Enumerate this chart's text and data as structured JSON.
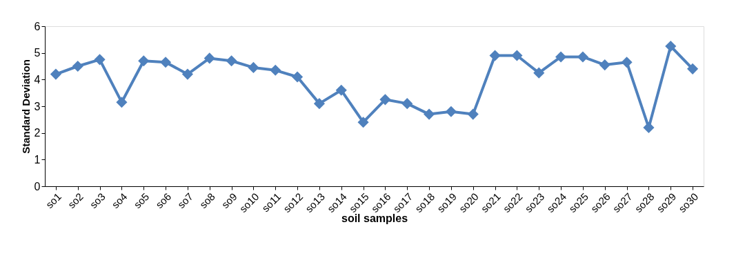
{
  "chart_data": {
    "type": "line",
    "xlabel": "soil samples",
    "ylabel": "Standard Deviation",
    "categories": [
      "so1",
      "so2",
      "so3",
      "so4",
      "so5",
      "so6",
      "so7",
      "so8",
      "so9",
      "so10",
      "so11",
      "so12",
      "so13",
      "so14",
      "so15",
      "so16",
      "so17",
      "so18",
      "so19",
      "so20",
      "so21",
      "so22",
      "so23",
      "so24",
      "so25",
      "so26",
      "so27",
      "so28",
      "so29",
      "so30"
    ],
    "series": [
      {
        "color": "#4f81bd",
        "values": [
          4.2,
          4.5,
          4.75,
          3.15,
          4.7,
          4.65,
          4.2,
          4.8,
          4.7,
          4.45,
          4.35,
          4.1,
          3.1,
          3.6,
          2.4,
          3.25,
          3.1,
          2.7,
          2.8,
          2.7,
          4.9,
          4.9,
          4.25,
          4.85,
          4.85,
          4.55,
          4.65,
          2.2,
          5.25,
          4.4
        ]
      }
    ],
    "ylim": [
      0,
      6
    ],
    "yticks": [
      0,
      1,
      2,
      3,
      4,
      5,
      6
    ],
    "grid": false,
    "marker": "diamond",
    "line_style": "solid"
  }
}
